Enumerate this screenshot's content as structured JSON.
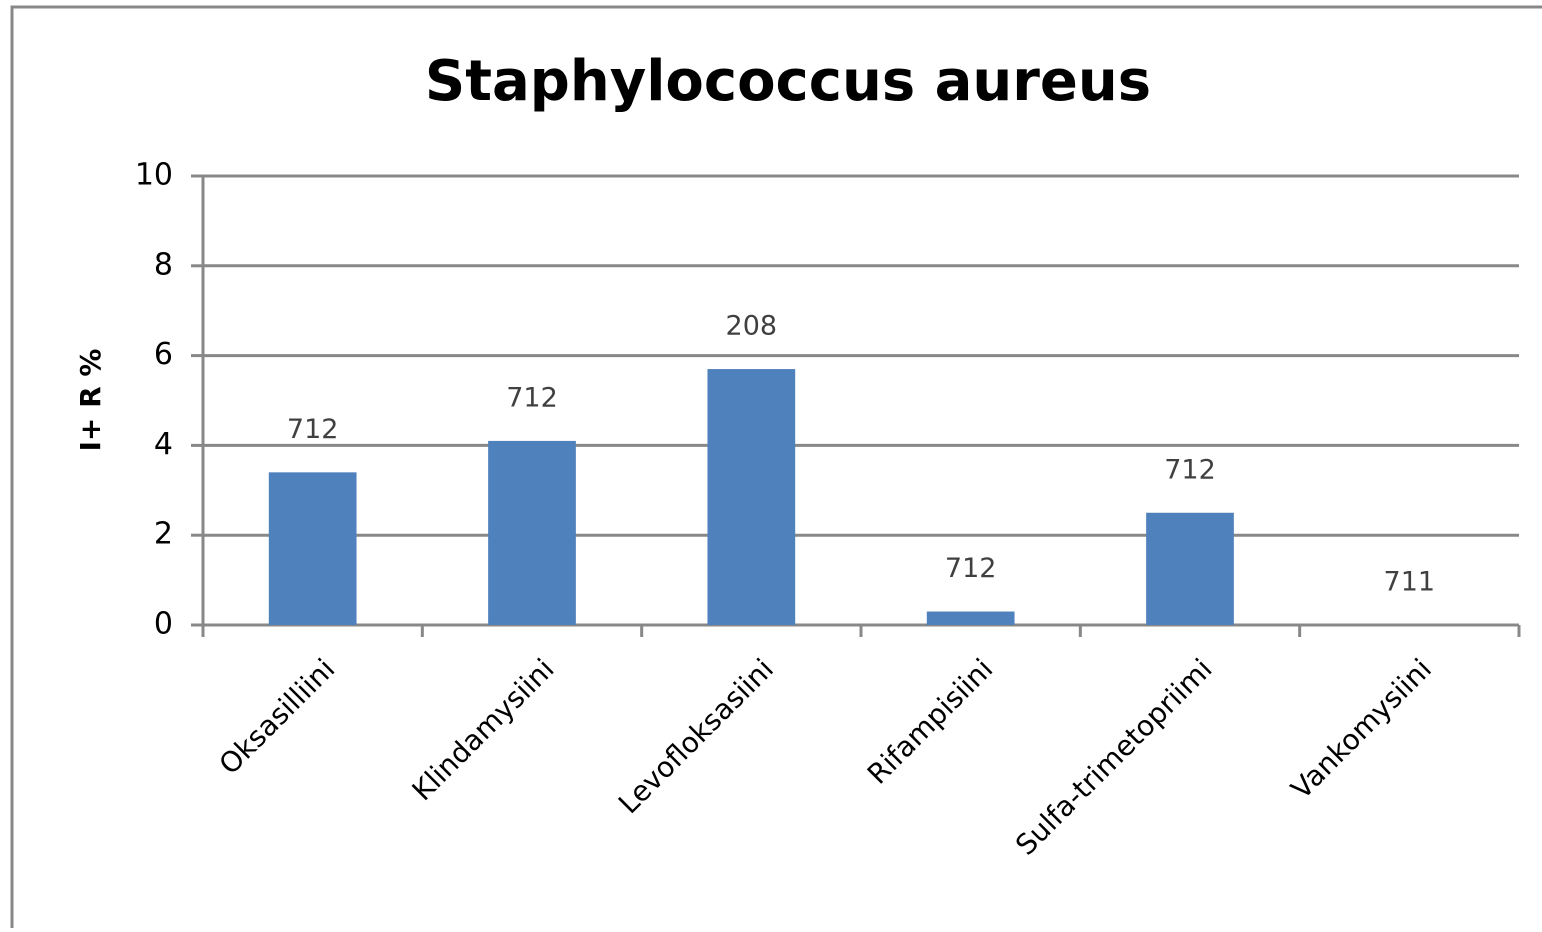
{
  "chart_data": {
    "type": "bar",
    "title": "Staphylococcus aureus",
    "y_label": "I+ R %",
    "categories": [
      "Oksasilliini",
      "Klindamysiini",
      "Levofloksasiini",
      "Rifampisiini",
      "Sulfa-trimetopriimi",
      "Vankomysiini"
    ],
    "values": [
      3.4,
      4.1,
      5.7,
      0.3,
      2.5,
      0
    ],
    "bar_labels": [
      712,
      712,
      208,
      712,
      712,
      711
    ],
    "color": "#4f81bd",
    "ylim": [
      0,
      10
    ],
    "yticks": [
      0,
      2,
      4,
      6,
      8,
      10
    ],
    "grid": true
  }
}
